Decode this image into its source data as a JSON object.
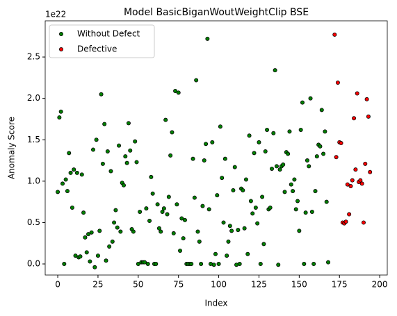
{
  "chart_data": {
    "type": "scatter",
    "title": "Model BasicBiganWoutWeightClip BSE",
    "x_label": "Index",
    "y_label": "Anomaly Score",
    "y_offset_label": "1e22",
    "legend": "upper left",
    "xlim": [
      -7.8,
      204.7
    ],
    "ylim": [
      -0.134,
      2.937
    ],
    "xticks": [
      0,
      25,
      50,
      75,
      100,
      125,
      150,
      175,
      200
    ],
    "yticks": [
      {
        "value": 0,
        "label": "0.0"
      },
      0.5,
      {
        "value": 1,
        "label": "1.0"
      },
      1.5,
      {
        "value": 2,
        "label": "2.0"
      },
      2.5
    ],
    "series": [
      {
        "name": "Without Defect",
        "color": "green",
        "x": [
          0,
          1,
          2,
          3,
          4,
          5,
          6,
          7,
          8,
          9,
          10,
          11,
          12,
          13,
          14,
          15,
          16,
          17,
          18,
          19,
          20,
          21,
          22,
          23,
          24,
          25,
          26,
          27,
          28,
          29,
          30,
          31,
          32,
          33,
          34,
          35,
          36,
          37,
          38,
          39,
          40,
          41,
          42,
          43,
          44,
          45,
          46,
          47,
          48,
          49,
          50,
          51,
          52,
          53,
          54,
          55,
          56,
          57,
          58,
          59,
          60,
          61,
          62,
          63,
          64,
          65,
          66,
          67,
          68,
          69,
          70,
          71,
          72,
          73,
          74,
          75,
          76,
          77,
          78,
          79,
          80,
          81,
          82,
          83,
          84,
          85,
          86,
          87,
          88,
          89,
          90,
          91,
          92,
          93,
          94,
          95,
          96,
          97,
          98,
          99,
          100,
          101,
          102,
          103,
          104,
          105,
          106,
          107,
          108,
          109,
          110,
          111,
          112,
          113,
          114,
          115,
          116,
          117,
          118,
          119,
          120,
          121,
          122,
          123,
          124,
          125,
          126,
          127,
          128,
          129,
          130,
          131,
          132,
          133,
          134,
          135,
          136,
          137,
          138,
          139,
          140,
          141,
          142,
          143,
          144,
          145,
          146,
          147,
          148,
          149,
          150,
          151,
          152,
          153,
          154,
          155,
          156,
          157,
          158,
          159,
          160,
          161,
          162,
          163,
          164,
          165,
          166,
          167,
          168
        ],
        "values": [
          0.87,
          1.77,
          1.84,
          0.97,
          0.0,
          1.02,
          0.88,
          1.34,
          1.1,
          0.68,
          1.14,
          0.1,
          1.1,
          0.08,
          0.09,
          1.08,
          0.62,
          0.32,
          0.14,
          0.36,
          0.03,
          0.38,
          1.38,
          -0.04,
          1.5,
          0.1,
          0.4,
          2.05,
          1.21,
          1.69,
          0.04,
          1.36,
          0.21,
          1.12,
          0.27,
          0.5,
          0.65,
          0.44,
          1.43,
          0.39,
          0.98,
          0.95,
          1.3,
          1.22,
          1.7,
          1.37,
          0.42,
          0.39,
          1.48,
          1.23,
          0.0,
          0.63,
          0.02,
          0.02,
          0.02,
          0.67,
          0.0,
          0.52,
          1.05,
          0.85,
          0.0,
          0.0,
          0.72,
          0.43,
          0.39,
          0.63,
          0.67,
          1.74,
          0.6,
          0.81,
          1.31,
          1.59,
          0.37,
          2.09,
          0.72,
          2.07,
          0.16,
          0.55,
          0.31,
          0.53,
          0.0,
          0.0,
          0.0,
          0.0,
          1.27,
          0.8,
          2.22,
          0.39,
          0.27,
          0.0,
          0.7,
          1.25,
          1.45,
          2.72,
          0.66,
          0.0,
          1.47,
          -0.01,
          0.12,
          0.83,
          0.0,
          1.66,
          1.04,
          0.5,
          1.27,
          0.1,
          0.27,
          0.46,
          0.4,
          0.89,
          1.17,
          -0.01,
          0.41,
          0.0,
          0.91,
          0.89,
          0.43,
          1.02,
          0.12,
          1.55,
          0.76,
          0.61,
          1.34,
          0.68,
          0.49,
          1.47,
          0.0,
          0.81,
          0.24,
          1.36,
          1.62,
          0.66,
          0.68,
          1.15,
          1.58,
          2.34,
          1.18,
          -0.01,
          1.14,
          1.18,
          1.2,
          0.87,
          1.35,
          1.33,
          1.6,
          0.96,
          0.88,
          1.02,
          0.66,
          0.76,
          0.4,
          1.62,
          1.95,
          0.0,
          0.62,
          1.25,
          1.18,
          2.0,
          0.63,
          0.0,
          0.88,
          1.3,
          1.44,
          1.42,
          1.86,
          1.33,
          1.6,
          0.75,
          0.02
        ]
      },
      {
        "name": "Defective",
        "color": "red",
        "x": [
          172,
          173,
          174,
          175,
          176,
          177,
          178,
          179,
          180,
          181,
          182,
          183,
          184,
          185,
          186,
          187,
          188,
          189,
          190,
          191,
          192,
          193,
          194
        ],
        "values": [
          2.77,
          1.29,
          2.19,
          1.47,
          1.46,
          0.5,
          0.49,
          0.51,
          0.96,
          0.6,
          0.94,
          1.01,
          1.76,
          1.14,
          2.06,
          0.99,
          1.01,
          0.97,
          0.5,
          1.21,
          1.99,
          1.78,
          1.11
        ]
      }
    ]
  }
}
